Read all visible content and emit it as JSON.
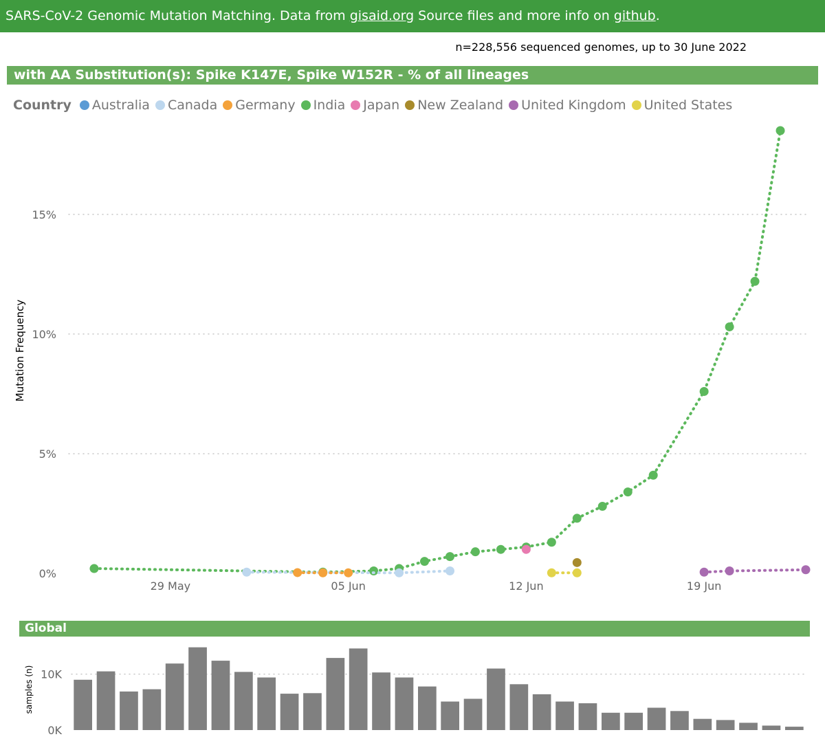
{
  "header": {
    "prefix": "SARS-CoV-2 Genomic Mutation Matching. Data from ",
    "gisaid_link": "gisaid.org",
    "middle": " Source files and more info on ",
    "github_link": "github",
    "suffix": ".",
    "background_color": "#3f9b3f"
  },
  "subtitle": "n=228,556 sequenced genomes, up to 30 June 2022",
  "main_chart_title": "with AA Substitution(s): Spike K147E, Spike W152R - % of all lineages",
  "global_chart_title": "Global",
  "legend": {
    "title": "Country",
    "items": [
      {
        "label": "Australia",
        "color": "#5b9bd5"
      },
      {
        "label": "Canada",
        "color": "#bdd7ee"
      },
      {
        "label": "Germany",
        "color": "#f4a23b"
      },
      {
        "label": "India",
        "color": "#5cb85c"
      },
      {
        "label": "Japan",
        "color": "#e87bb0"
      },
      {
        "label": "New Zealand",
        "color": "#a88b2c"
      },
      {
        "label": "United Kingdom",
        "color": "#a86bb0"
      },
      {
        "label": "United States",
        "color": "#e2d34a"
      }
    ]
  },
  "chart_data": [
    {
      "type": "line",
      "title": "with AA Substitution(s): Spike K147E, Spike W152R - % of all lineages",
      "xlabel": "",
      "ylabel": "Mutation Frequency",
      "x_ticks": [
        {
          "label": "29 May",
          "date": "2022-05-29"
        },
        {
          "label": "05 Jun",
          "date": "2022-06-05"
        },
        {
          "label": "12 Jun",
          "date": "2022-06-12"
        },
        {
          "label": "19 Jun",
          "date": "2022-06-19"
        }
      ],
      "xlim": [
        "2022-05-25",
        "2022-06-23"
      ],
      "y_ticks": [
        {
          "label": "0%",
          "value": 0
        },
        {
          "label": "5%",
          "value": 5
        },
        {
          "label": "10%",
          "value": 10
        },
        {
          "label": "15%",
          "value": 15
        }
      ],
      "ylim": [
        0,
        18.5
      ],
      "grid": true,
      "legend_position": "top-left",
      "series": [
        {
          "name": "India",
          "color": "#5cb85c",
          "points": [
            {
              "x": "2022-05-26",
              "y": 0.2
            },
            {
              "x": "2022-06-04",
              "y": 0.05
            },
            {
              "x": "2022-06-06",
              "y": 0.1
            },
            {
              "x": "2022-06-07",
              "y": 0.2
            },
            {
              "x": "2022-06-08",
              "y": 0.5
            },
            {
              "x": "2022-06-09",
              "y": 0.7
            },
            {
              "x": "2022-06-10",
              "y": 0.9
            },
            {
              "x": "2022-06-11",
              "y": 1.0
            },
            {
              "x": "2022-06-12",
              "y": 1.1
            },
            {
              "x": "2022-06-13",
              "y": 1.3
            },
            {
              "x": "2022-06-14",
              "y": 2.3
            },
            {
              "x": "2022-06-15",
              "y": 2.8
            },
            {
              "x": "2022-06-16",
              "y": 3.4
            },
            {
              "x": "2022-06-17",
              "y": 4.1
            },
            {
              "x": "2022-06-19",
              "y": 7.6
            },
            {
              "x": "2022-06-20",
              "y": 10.3
            },
            {
              "x": "2022-06-21",
              "y": 12.2
            },
            {
              "x": "2022-06-22",
              "y": 18.5
            }
          ]
        },
        {
          "name": "Canada",
          "color": "#bdd7ee",
          "points": [
            {
              "x": "2022-06-01",
              "y": 0.05
            },
            {
              "x": "2022-06-07",
              "y": 0.02
            },
            {
              "x": "2022-06-09",
              "y": 0.1
            }
          ]
        },
        {
          "name": "Germany",
          "color": "#f4a23b",
          "points": [
            {
              "x": "2022-06-03",
              "y": 0.03
            },
            {
              "x": "2022-06-04",
              "y": 0.02
            },
            {
              "x": "2022-06-05",
              "y": 0.02
            }
          ]
        },
        {
          "name": "Japan",
          "color": "#e87bb0",
          "points": [
            {
              "x": "2022-06-12",
              "y": 1.0
            }
          ]
        },
        {
          "name": "New Zealand",
          "color": "#a88b2c",
          "points": [
            {
              "x": "2022-06-14",
              "y": 0.45
            }
          ]
        },
        {
          "name": "United States",
          "color": "#e2d34a",
          "points": [
            {
              "x": "2022-06-13",
              "y": 0.02
            },
            {
              "x": "2022-06-14",
              "y": 0.02
            }
          ]
        },
        {
          "name": "United Kingdom",
          "color": "#a86bb0",
          "points": [
            {
              "x": "2022-06-19",
              "y": 0.05
            },
            {
              "x": "2022-06-20",
              "y": 0.1
            },
            {
              "x": "2022-06-23",
              "y": 0.15
            }
          ]
        }
      ]
    },
    {
      "type": "bar",
      "title": "Global",
      "xlabel": "",
      "ylabel": "samples (n)",
      "bar_color": "#808080",
      "y_ticks": [
        {
          "label": "0K",
          "value": 0
        },
        {
          "label": "10K",
          "value": 10000
        }
      ],
      "ylim": [
        0,
        15000
      ],
      "categories": [
        "2022-05-25",
        "2022-05-26",
        "2022-05-27",
        "2022-05-28",
        "2022-05-29",
        "2022-05-30",
        "2022-05-31",
        "2022-06-01",
        "2022-06-02",
        "2022-06-03",
        "2022-06-04",
        "2022-06-05",
        "2022-06-06",
        "2022-06-07",
        "2022-06-08",
        "2022-06-09",
        "2022-06-10",
        "2022-06-11",
        "2022-06-12",
        "2022-06-13",
        "2022-06-14",
        "2022-06-15",
        "2022-06-16",
        "2022-06-17",
        "2022-06-18",
        "2022-06-19",
        "2022-06-20",
        "2022-06-21",
        "2022-06-22",
        "2022-06-23",
        "2022-06-24",
        "2022-06-25"
      ],
      "values": [
        9000,
        10500,
        6900,
        7300,
        11900,
        14800,
        12400,
        10400,
        9400,
        6500,
        6600,
        12900,
        14600,
        10300,
        9400,
        7800,
        5100,
        5600,
        11000,
        8200,
        6400,
        5100,
        4800,
        3100,
        3100,
        4000,
        3400,
        2000,
        1800,
        1300,
        800,
        600
      ]
    }
  ]
}
